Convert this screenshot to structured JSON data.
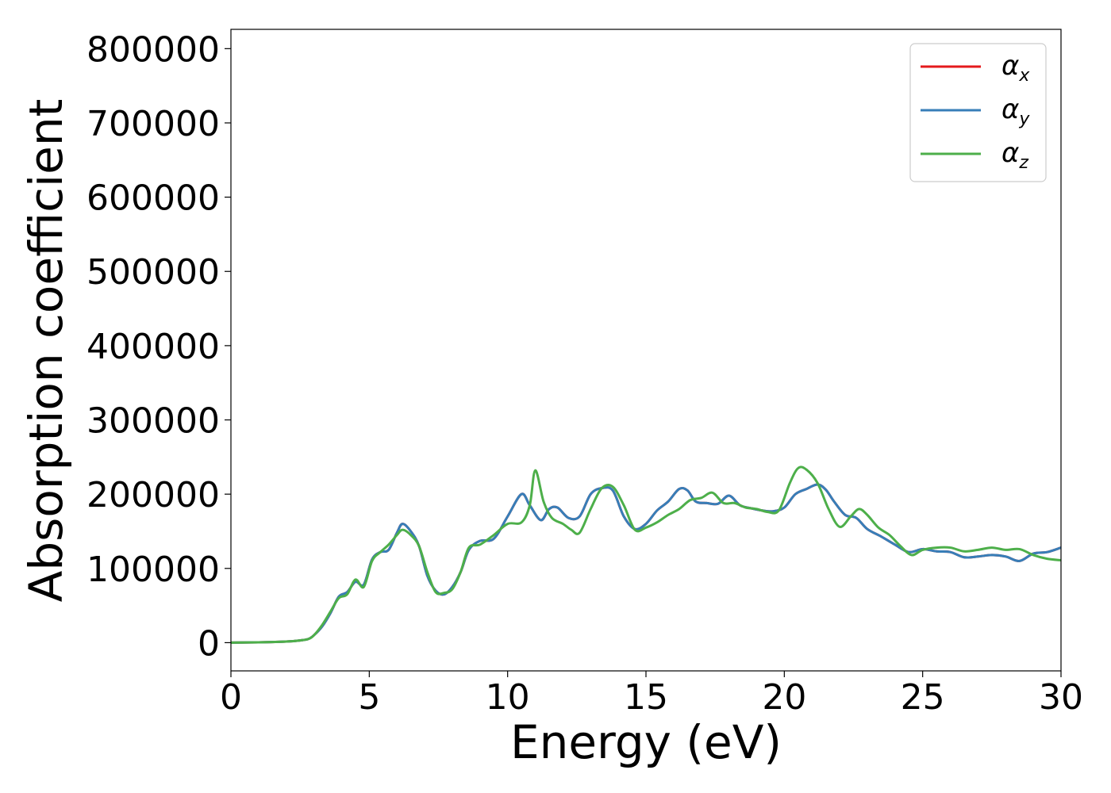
{
  "chart_data": {
    "type": "line",
    "title": "",
    "xlabel": "Energy (eV)",
    "ylabel": "Absorption coefficient",
    "xlim": [
      0,
      30
    ],
    "ylim": [
      -38000,
      826000
    ],
    "xticks": [
      0,
      5,
      10,
      15,
      20,
      25,
      30
    ],
    "xtick_labels": [
      "0",
      "5",
      "10",
      "15",
      "20",
      "25",
      "30"
    ],
    "yticks": [
      0,
      100000,
      200000,
      300000,
      400000,
      500000,
      600000,
      700000,
      800000
    ],
    "ytick_labels": [
      "0",
      "100000",
      "200000",
      "300000",
      "400000",
      "500000",
      "600000",
      "700000",
      "800000"
    ],
    "grid": false,
    "legend_position": "top-right",
    "series": [
      {
        "name": "α",
        "subscript": "x",
        "color": "#e41a1c",
        "x": [
          0,
          1,
          2,
          2.5,
          2.8,
          3,
          3.3,
          3.6,
          3.9,
          4.2,
          4.5,
          4.8,
          5.1,
          5.4,
          5.7,
          6,
          6.2,
          6.5,
          6.8,
          7.1,
          7.4,
          7.7,
          8,
          8.3,
          8.6,
          9,
          9.5,
          10,
          10.5,
          10.8,
          11.2,
          11.5,
          11.8,
          12.2,
          12.6,
          13,
          13.4,
          13.8,
          14.2,
          14.6,
          15,
          15.4,
          15.8,
          16.2,
          16.5,
          16.8,
          17.2,
          17.6,
          18,
          18.4,
          18.8,
          19.2,
          19.6,
          20,
          20.4,
          20.8,
          21.2,
          21.5,
          21.8,
          22.2,
          22.6,
          23,
          23.5,
          24,
          24.5,
          25,
          25.5,
          26,
          26.5,
          27,
          27.5,
          28,
          28.5,
          29,
          29.5,
          30
        ],
        "y": [
          0,
          500,
          1500,
          3000,
          5000,
          10000,
          22000,
          40000,
          62000,
          68000,
          82000,
          78000,
          112000,
          122000,
          125000,
          148000,
          160000,
          150000,
          130000,
          90000,
          70000,
          65000,
          75000,
          95000,
          125000,
          137000,
          140000,
          170000,
          200000,
          185000,
          165000,
          180000,
          182000,
          168000,
          170000,
          200000,
          208000,
          205000,
          170000,
          153000,
          160000,
          178000,
          190000,
          207000,
          205000,
          190000,
          188000,
          187000,
          198000,
          185000,
          181000,
          178000,
          177000,
          182000,
          200000,
          207000,
          213000,
          206000,
          190000,
          172000,
          168000,
          153000,
          143000,
          132000,
          122000,
          126000,
          123000,
          122000,
          115000,
          116000,
          118000,
          116000,
          110000,
          120000,
          122000,
          128000
        ]
      },
      {
        "name": "α",
        "subscript": "y",
        "color": "#377eb8",
        "x": [
          0,
          1,
          2,
          2.5,
          2.8,
          3,
          3.3,
          3.6,
          3.9,
          4.2,
          4.5,
          4.8,
          5.1,
          5.4,
          5.7,
          6,
          6.2,
          6.5,
          6.8,
          7.1,
          7.4,
          7.7,
          8,
          8.3,
          8.6,
          9,
          9.5,
          10,
          10.5,
          10.8,
          11.2,
          11.5,
          11.8,
          12.2,
          12.6,
          13,
          13.4,
          13.8,
          14.2,
          14.6,
          15,
          15.4,
          15.8,
          16.2,
          16.5,
          16.8,
          17.2,
          17.6,
          18,
          18.4,
          18.8,
          19.2,
          19.6,
          20,
          20.4,
          20.8,
          21.2,
          21.5,
          21.8,
          22.2,
          22.6,
          23,
          23.5,
          24,
          24.5,
          25,
          25.5,
          26,
          26.5,
          27,
          27.5,
          28,
          28.5,
          29,
          29.5,
          30
        ],
        "y": [
          0,
          500,
          1500,
          3000,
          5000,
          10000,
          22000,
          40000,
          62000,
          68000,
          82000,
          78000,
          112000,
          122000,
          125000,
          148000,
          160000,
          150000,
          130000,
          90000,
          70000,
          65000,
          75000,
          95000,
          125000,
          137000,
          140000,
          170000,
          200000,
          185000,
          165000,
          180000,
          182000,
          168000,
          170000,
          200000,
          208000,
          205000,
          170000,
          153000,
          160000,
          178000,
          190000,
          207000,
          205000,
          190000,
          188000,
          187000,
          198000,
          185000,
          181000,
          178000,
          177000,
          182000,
          200000,
          207000,
          213000,
          206000,
          190000,
          172000,
          168000,
          153000,
          143000,
          132000,
          122000,
          126000,
          123000,
          122000,
          115000,
          116000,
          118000,
          116000,
          110000,
          120000,
          122000,
          128000
        ]
      },
      {
        "name": "α",
        "subscript": "z",
        "color": "#4daf4a",
        "x": [
          0,
          1,
          2,
          2.5,
          2.8,
          3,
          3.3,
          3.6,
          3.9,
          4.2,
          4.5,
          4.8,
          5.1,
          5.4,
          5.7,
          6,
          6.2,
          6.5,
          6.8,
          7.1,
          7.4,
          7.7,
          8,
          8.3,
          8.6,
          9,
          9.5,
          10,
          10.5,
          10.8,
          11,
          11.3,
          11.6,
          12,
          12.3,
          12.6,
          13,
          13.4,
          13.8,
          14.2,
          14.6,
          15,
          15.4,
          15.8,
          16.2,
          16.6,
          17,
          17.4,
          17.8,
          18.2,
          18.6,
          19,
          19.4,
          19.8,
          20.2,
          20.5,
          20.8,
          21.2,
          21.6,
          22,
          22.4,
          22.7,
          23,
          23.4,
          23.8,
          24.2,
          24.6,
          25,
          25.5,
          26,
          26.5,
          27,
          27.5,
          28,
          28.5,
          29,
          29.5,
          30
        ],
        "y": [
          0,
          500,
          1500,
          3000,
          5000,
          10000,
          24000,
          42000,
          60000,
          65000,
          85000,
          75000,
          110000,
          122000,
          132000,
          145000,
          152000,
          145000,
          130000,
          95000,
          68000,
          67000,
          72000,
          95000,
          128000,
          132000,
          145000,
          160000,
          162000,
          185000,
          232000,
          190000,
          168000,
          160000,
          152000,
          148000,
          180000,
          208000,
          210000,
          185000,
          152000,
          155000,
          162000,
          172000,
          180000,
          192000,
          195000,
          202000,
          188000,
          188000,
          182000,
          180000,
          176000,
          178000,
          215000,
          235000,
          233000,
          215000,
          180000,
          156000,
          170000,
          180000,
          172000,
          155000,
          145000,
          130000,
          118000,
          125000,
          128000,
          128000,
          123000,
          125000,
          128000,
          125000,
          126000,
          118000,
          113000,
          111000
        ]
      }
    ]
  }
}
